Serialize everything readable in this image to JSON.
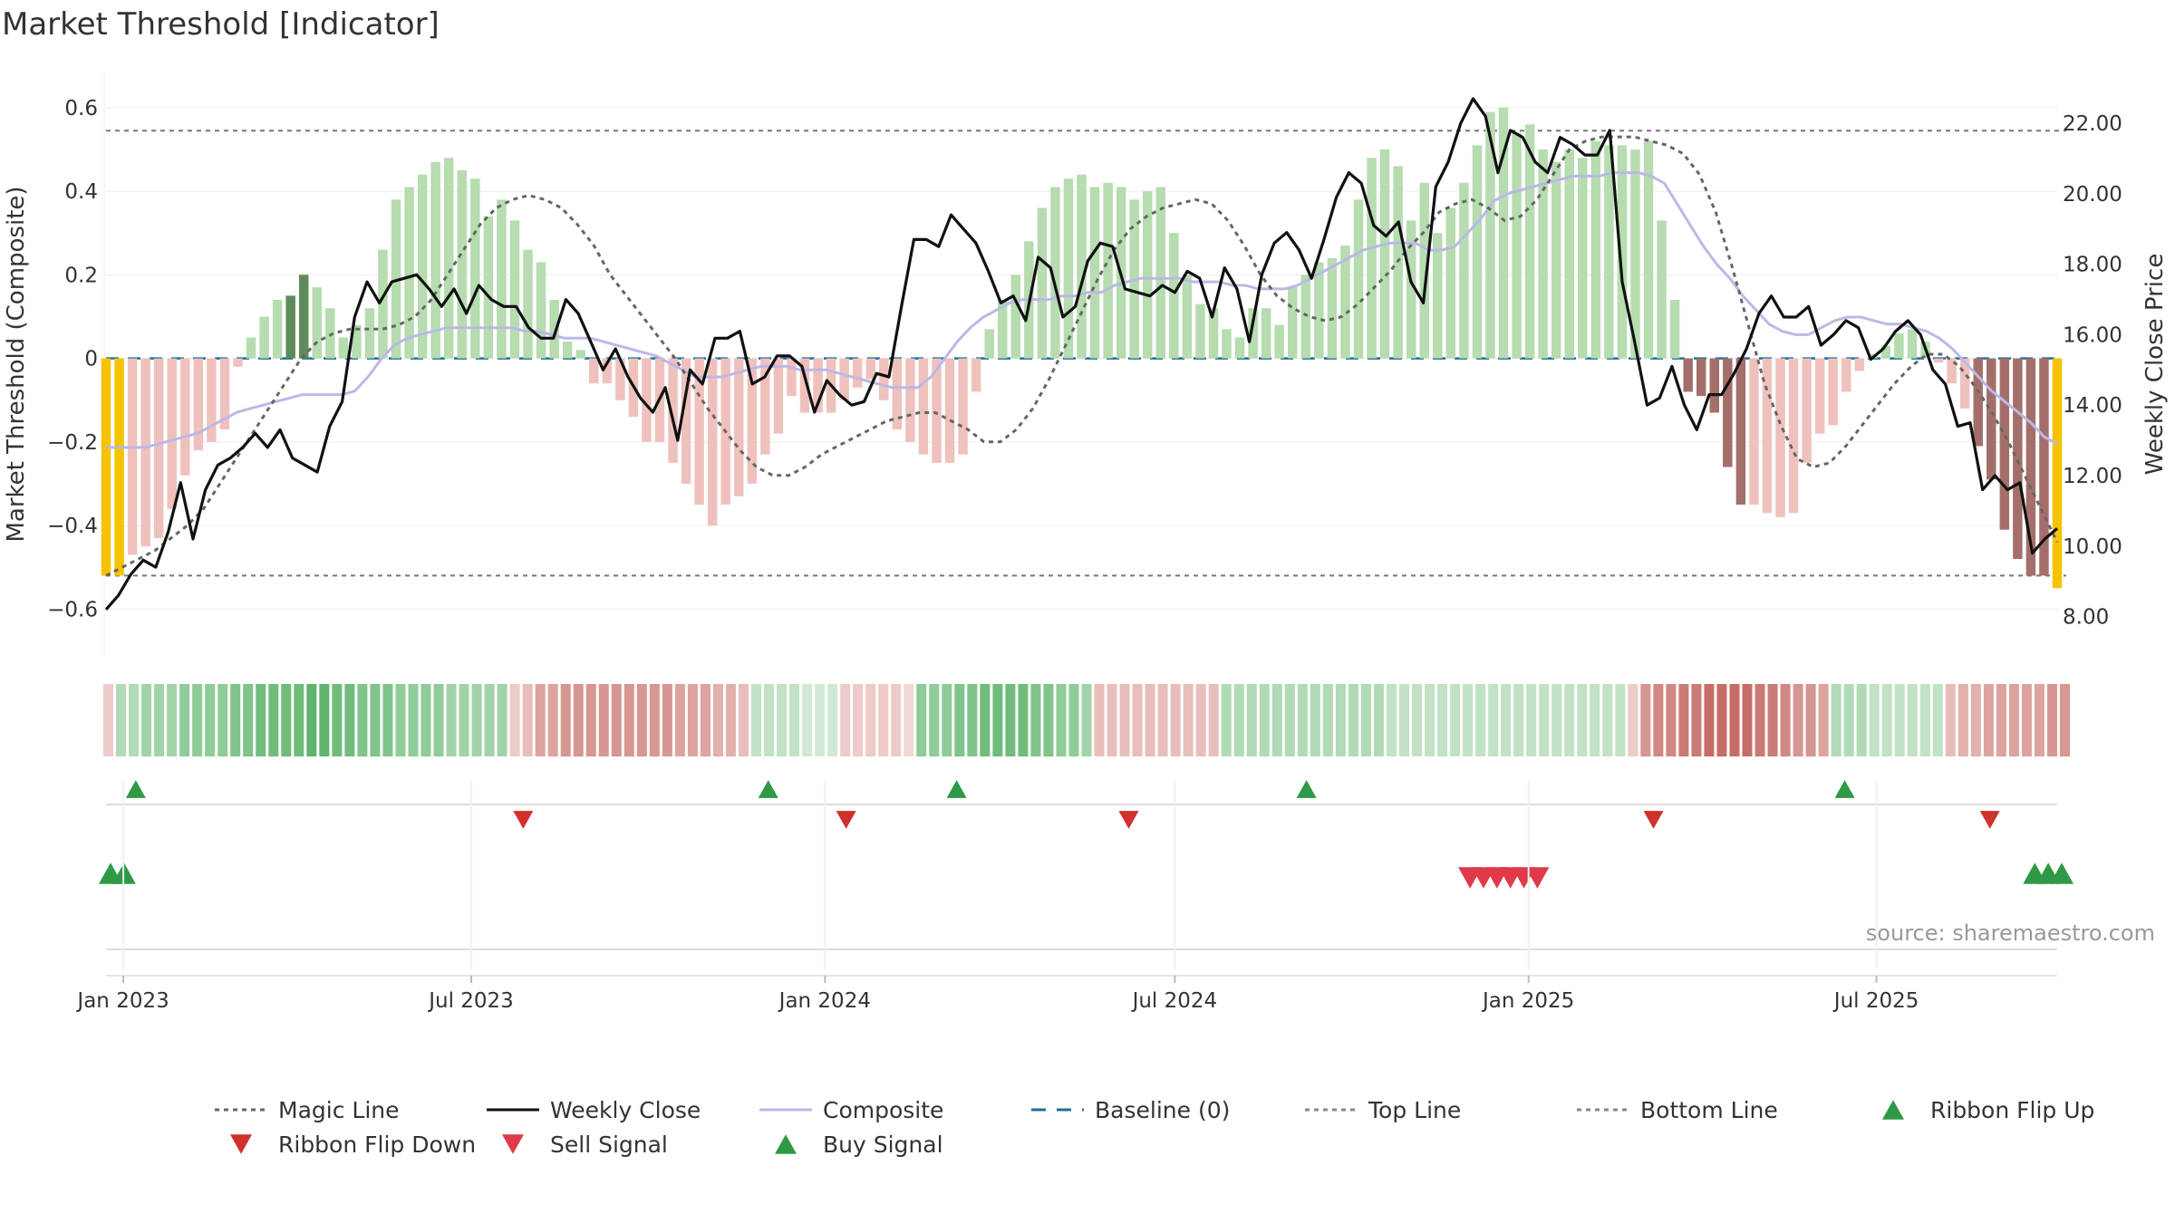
{
  "title": "Market Threshold [Indicator]",
  "source_label": "source: sharemaestro.com",
  "colors": {
    "bar_dark_green": "#5e8b5a",
    "bar_light_green": "#b6dcb0",
    "bar_dark_red": "#a46f6a",
    "bar_light_red": "#efc1bd",
    "bar_yellow": "#f5c300",
    "close_line": "#111111",
    "composite_line": "#bcb8e6",
    "magic_line": "#666666",
    "baseline": "#1f6d9c",
    "flip_up": "#2e9a45",
    "flip_down": "#d0312d",
    "sell": "#e0394a",
    "buy": "#2e9a45"
  },
  "chart_data": {
    "type": "bar",
    "ylabel_left": "Market Threshold (Composite)",
    "ylabel_right": "Weekly Close Price",
    "ylim_left": [
      -0.66,
      0.63
    ],
    "ylim_right": [
      7.5,
      22.8
    ],
    "yticks_left": [
      "0.6",
      "0.4",
      "0.2",
      "0",
      "−0.2",
      "−0.4",
      "−0.6"
    ],
    "yticks_left_values": [
      0.6,
      0.4,
      0.2,
      0,
      -0.2,
      -0.4,
      -0.6
    ],
    "yticks_right": [
      "22.00",
      "20.00",
      "18.00",
      "16.00",
      "14.00",
      "12.00",
      "10.00",
      "8.00"
    ],
    "yticks_right_values": [
      22,
      20,
      18,
      16,
      14,
      12,
      10,
      8
    ],
    "x_start": "2022-12-23",
    "x_end": "2025-10-03",
    "xticks": [
      {
        "date": "2023-01-01",
        "label": "Jan 2023"
      },
      {
        "date": "2023-07-01",
        "label": "Jul 2023"
      },
      {
        "date": "2024-01-01",
        "label": "Jan 2024"
      },
      {
        "date": "2024-07-01",
        "label": "Jul 2024"
      },
      {
        "date": "2025-01-01",
        "label": "Jan 2025"
      },
      {
        "date": "2025-07-01",
        "label": "Jul 2025"
      }
    ],
    "reference_lines": {
      "top": 0.545,
      "bottom": -0.52,
      "baseline": 0
    },
    "composite_bars": [
      -0.52,
      -0.52,
      -0.47,
      -0.45,
      -0.43,
      -0.36,
      -0.28,
      -0.22,
      -0.2,
      -0.17,
      -0.02,
      0.05,
      0.1,
      0.14,
      0.15,
      0.2,
      0.17,
      0.12,
      0.05,
      0.08,
      0.12,
      0.26,
      0.38,
      0.41,
      0.44,
      0.47,
      0.48,
      0.45,
      0.43,
      0.34,
      0.38,
      0.33,
      0.26,
      0.23,
      0.14,
      0.04,
      0.02,
      -0.06,
      -0.06,
      -0.1,
      -0.14,
      -0.2,
      -0.2,
      -0.25,
      -0.3,
      -0.35,
      -0.4,
      -0.35,
      -0.33,
      -0.3,
      -0.23,
      -0.18,
      -0.09,
      -0.13,
      -0.13,
      -0.13,
      -0.1,
      -0.07,
      -0.05,
      -0.1,
      -0.17,
      -0.2,
      -0.23,
      -0.25,
      -0.25,
      -0.23,
      -0.08,
      0.07,
      0.14,
      0.2,
      0.28,
      0.36,
      0.41,
      0.43,
      0.44,
      0.41,
      0.42,
      0.41,
      0.38,
      0.4,
      0.41,
      0.3,
      0.2,
      0.13,
      0.12,
      0.07,
      0.05,
      0.12,
      0.12,
      0.08,
      0.17,
      0.2,
      0.23,
      0.24,
      0.27,
      0.38,
      0.48,
      0.5,
      0.46,
      0.33,
      0.42,
      0.3,
      0.36,
      0.42,
      0.51,
      0.59,
      0.6,
      0.54,
      0.56,
      0.5,
      0.47,
      0.5,
      0.48,
      0.52,
      0.51,
      0.51,
      0.5,
      0.52,
      0.33,
      0.14,
      -0.08,
      -0.09,
      -0.13,
      -0.26,
      -0.35,
      -0.35,
      -0.37,
      -0.38,
      -0.37,
      -0.25,
      -0.18,
      -0.16,
      -0.08,
      -0.03,
      0.01,
      0.03,
      0.06,
      0.07,
      0.04,
      -0.01,
      -0.06,
      -0.12,
      -0.21,
      -0.29,
      -0.41,
      -0.48,
      -0.52,
      -0.52,
      -0.55
    ],
    "bar_styles": "YYLLLLLLLLLlllLLdddlllllddddddlllldddlllLLLLlllllllLLLLlLLLLLllllllllllllllllllllldddddddllllllllllllllllllllllllllllllddddddlllllllllllllllllddddddYYYYYYYlllllldllLLLLLLLLLLLLLLLLLLLLLLLLdddddddddYYYYY",
    "bar_styles_note": "",
    "weekly_close": [
      8.2,
      8.6,
      9.2,
      9.6,
      9.4,
      10.4,
      11.8,
      10.2,
      11.6,
      12.3,
      12.5,
      12.8,
      13.2,
      12.8,
      13.3,
      12.5,
      12.3,
      12.1,
      13.4,
      14.1,
      16.5,
      17.5,
      16.9,
      17.5,
      17.6,
      17.7,
      17.3,
      16.8,
      17.3,
      16.6,
      17.4,
      17.0,
      16.8,
      16.8,
      16.2,
      15.9,
      15.9,
      17.0,
      16.6,
      15.8,
      15.0,
      15.6,
      14.8,
      14.2,
      13.8,
      14.5,
      13.0,
      15.0,
      14.6,
      15.9,
      15.9,
      16.1,
      14.6,
      14.8,
      15.4,
      15.4,
      15.1,
      13.8,
      14.7,
      14.3,
      14.0,
      14.1,
      14.9,
      14.8,
      16.8,
      18.7,
      18.7,
      18.5,
      19.4,
      19.0,
      18.6,
      17.8,
      16.9,
      17.1,
      16.4,
      18.2,
      17.9,
      16.5,
      16.8,
      18.1,
      18.6,
      18.5,
      17.3,
      17.2,
      17.1,
      17.4,
      17.2,
      17.8,
      17.6,
      16.5,
      17.9,
      17.3,
      15.8,
      17.7,
      18.6,
      18.9,
      18.4,
      17.6,
      18.7,
      19.9,
      20.6,
      20.3,
      19.1,
      18.8,
      19.2,
      17.5,
      16.9,
      20.2,
      20.9,
      22.0,
      22.7,
      22.2,
      20.6,
      21.8,
      21.6,
      20.9,
      20.6,
      21.6,
      21.4,
      21.1,
      21.1,
      21.8,
      17.5,
      15.8,
      14.0,
      14.2,
      15.1,
      14.0,
      13.3,
      14.3,
      14.3,
      14.9,
      15.6,
      16.6,
      17.1,
      16.5,
      16.5,
      16.8,
      15.7,
      16.0,
      16.4,
      16.2,
      15.3,
      15.6,
      16.1,
      16.4,
      16.0,
      15.0,
      14.6,
      13.4,
      13.5,
      11.6,
      12.0,
      11.6,
      11.8,
      9.8,
      10.2,
      10.5
    ],
    "composite_line": [
      12.8,
      12.8,
      12.8,
      12.8,
      12.9,
      13.0,
      13.1,
      13.2,
      13.4,
      13.6,
      13.8,
      13.9,
      14.0,
      14.1,
      14.2,
      14.3,
      14.3,
      14.3,
      14.3,
      14.4,
      14.8,
      15.3,
      15.7,
      15.9,
      16.0,
      16.1,
      16.2,
      16.2,
      16.2,
      16.2,
      16.2,
      16.2,
      16.1,
      16.1,
      16.0,
      15.9,
      15.9,
      15.9,
      15.8,
      15.7,
      15.6,
      15.5,
      15.4,
      15.2,
      15.0,
      14.8,
      14.8,
      14.8,
      14.9,
      15.0,
      15.1,
      15.1,
      15.1,
      15.0,
      15.0,
      15.0,
      14.9,
      14.8,
      14.7,
      14.6,
      14.5,
      14.5,
      14.5,
      14.8,
      15.3,
      15.8,
      16.2,
      16.5,
      16.7,
      16.9,
      17.0,
      17.0,
      17.0,
      17.1,
      17.1,
      17.2,
      17.2,
      17.4,
      17.5,
      17.6,
      17.6,
      17.6,
      17.6,
      17.5,
      17.5,
      17.5,
      17.4,
      17.4,
      17.3,
      17.3,
      17.3,
      17.4,
      17.6,
      17.8,
      18.0,
      18.2,
      18.4,
      18.5,
      18.6,
      18.6,
      18.6,
      18.4,
      18.4,
      18.5,
      18.9,
      19.3,
      19.8,
      20.0,
      20.1,
      20.2,
      20.3,
      20.4,
      20.5,
      20.5,
      20.5,
      20.6,
      20.6,
      20.6,
      20.5,
      20.3,
      19.7,
      19.1,
      18.5,
      18.0,
      17.6,
      17.1,
      16.7,
      16.3,
      16.1,
      16.0,
      16.0,
      16.2,
      16.4,
      16.5,
      16.5,
      16.4,
      16.3,
      16.3,
      16.2,
      16.1,
      15.9,
      15.6,
      15.2,
      14.8,
      14.4,
      14.1,
      13.8,
      13.5,
      13.1,
      12.9
    ],
    "magic_line": [
      -0.52,
      -0.5,
      -0.48,
      -0.46,
      -0.43,
      -0.4,
      -0.36,
      -0.3,
      -0.24,
      -0.18,
      -0.12,
      -0.06,
      0.0,
      0.04,
      0.06,
      0.07,
      0.07,
      0.07,
      0.08,
      0.1,
      0.14,
      0.2,
      0.26,
      0.32,
      0.36,
      0.38,
      0.39,
      0.38,
      0.36,
      0.32,
      0.27,
      0.2,
      0.15,
      0.1,
      0.05,
      0.0,
      -0.06,
      -0.12,
      -0.17,
      -0.22,
      -0.26,
      -0.28,
      -0.28,
      -0.26,
      -0.23,
      -0.21,
      -0.19,
      -0.17,
      -0.15,
      -0.14,
      -0.13,
      -0.13,
      -0.15,
      -0.17,
      -0.2,
      -0.2,
      -0.17,
      -0.12,
      -0.05,
      0.03,
      0.11,
      0.19,
      0.26,
      0.31,
      0.34,
      0.36,
      0.37,
      0.38,
      0.37,
      0.33,
      0.27,
      0.2,
      0.15,
      0.12,
      0.1,
      0.09,
      0.1,
      0.13,
      0.17,
      0.21,
      0.26,
      0.3,
      0.35,
      0.37,
      0.38,
      0.36,
      0.33,
      0.34,
      0.38,
      0.44,
      0.5,
      0.52,
      0.53,
      0.53,
      0.53,
      0.52,
      0.51,
      0.49,
      0.44,
      0.35,
      0.22,
      0.08,
      -0.06,
      -0.16,
      -0.24,
      -0.26,
      -0.25,
      -0.21,
      -0.16,
      -0.11,
      -0.06,
      -0.02,
      0.01,
      0.01,
      -0.02,
      -0.07,
      -0.13,
      -0.2,
      -0.28,
      -0.36,
      -0.44
    ],
    "ribbon_levels": [
      -0.2,
      0.4,
      0.4,
      0.5,
      0.5,
      0.5,
      0.6,
      0.6,
      0.6,
      0.6,
      0.7,
      0.7,
      0.8,
      0.8,
      0.8,
      0.8,
      0.9,
      0.9,
      0.8,
      0.8,
      0.7,
      0.7,
      0.7,
      0.6,
      0.6,
      0.6,
      0.6,
      0.5,
      0.5,
      0.5,
      0.5,
      0.5,
      -0.2,
      -0.3,
      -0.5,
      -0.5,
      -0.6,
      -0.6,
      -0.6,
      -0.6,
      -0.6,
      -0.6,
      -0.6,
      -0.6,
      -0.6,
      -0.5,
      -0.5,
      -0.5,
      -0.4,
      -0.4,
      -0.3,
      0.3,
      0.3,
      0.3,
      0.3,
      0.2,
      0.2,
      0.2,
      -0.2,
      -0.2,
      -0.2,
      -0.2,
      -0.2,
      -0.1,
      0.6,
      0.6,
      0.6,
      0.7,
      0.7,
      0.8,
      0.8,
      0.8,
      0.8,
      0.7,
      0.7,
      0.6,
      0.6,
      0.5,
      -0.3,
      -0.3,
      -0.3,
      -0.3,
      -0.3,
      -0.3,
      -0.3,
      -0.3,
      -0.3,
      -0.3,
      0.4,
      0.4,
      0.4,
      0.4,
      0.4,
      0.4,
      0.4,
      0.4,
      0.4,
      0.4,
      0.4,
      0.4,
      0.4,
      0.3,
      0.3,
      0.3,
      0.3,
      0.3,
      0.3,
      0.3,
      0.3,
      0.3,
      0.3,
      0.3,
      0.3,
      0.3,
      0.3,
      0.3,
      0.3,
      0.3,
      0.3,
      0.3,
      -0.2,
      -0.6,
      -0.7,
      -0.7,
      -0.8,
      -0.8,
      -0.9,
      -0.9,
      -0.9,
      -0.9,
      -0.8,
      -0.8,
      -0.7,
      -0.6,
      -0.6,
      -0.5,
      0.4,
      0.4,
      0.4,
      0.3,
      0.3,
      0.3,
      0.3,
      0.3,
      0.3,
      -0.3,
      -0.4,
      -0.4,
      -0.5,
      -0.5,
      -0.5,
      -0.5,
      -0.5,
      -0.6,
      -0.6
    ],
    "ribbon_flip_up": [
      "2022-12-30",
      "2023-11-24",
      "2024-03-01",
      "2024-08-30",
      "2025-06-06"
    ],
    "ribbon_flip_down": [
      "2023-07-28",
      "2024-01-12",
      "2024-06-07",
      "2025-03-07",
      "2025-08-29"
    ],
    "sell_signals": [
      "2024-11-08",
      "2024-11-15",
      "2024-11-22",
      "2024-11-29",
      "2024-12-06",
      "2024-12-13"
    ],
    "buy_signals": [
      "2022-12-23",
      "2022-12-30",
      "2025-09-19",
      "2025-09-26",
      "2025-10-03"
    ]
  },
  "legend": [
    {
      "label": "Magic Line",
      "kind": "dotted",
      "color": "#666666"
    },
    {
      "label": "Weekly Close",
      "kind": "solid",
      "color": "#111111"
    },
    {
      "label": "Composite",
      "kind": "solid",
      "color": "#bcb8e6"
    },
    {
      "label": "Baseline (0)",
      "kind": "dashed",
      "color": "#1f6d9c"
    },
    {
      "label": "Top Line",
      "kind": "dotted",
      "color": "#888888"
    },
    {
      "label": "Bottom Line",
      "kind": "dotted",
      "color": "#888888"
    },
    {
      "label": "Ribbon Flip Up",
      "kind": "triangle-up",
      "color": "#2e9a45"
    },
    {
      "label": "Ribbon Flip Down",
      "kind": "triangle-down",
      "color": "#d0312d"
    },
    {
      "label": "Sell Signal",
      "kind": "triangle-down",
      "color": "#e0394a"
    },
    {
      "label": "Buy Signal",
      "kind": "triangle-up",
      "color": "#2e9a45"
    }
  ]
}
